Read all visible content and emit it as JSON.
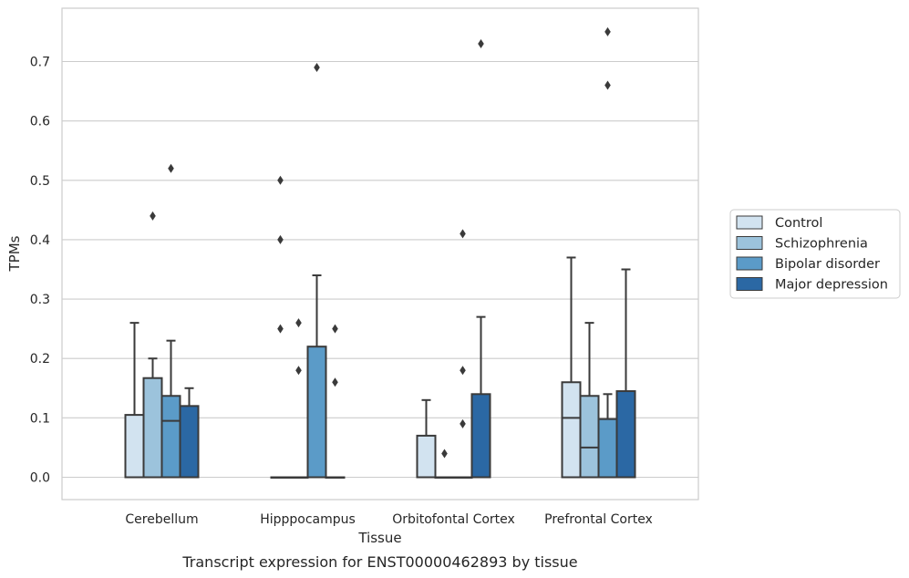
{
  "chart_data": {
    "type": "box",
    "title": "",
    "caption": "Transcript expression for ENST00000462893 by tissue",
    "xlabel": "Tissue",
    "ylabel": "TPMs",
    "ylim": [
      -0.037,
      0.79
    ],
    "yticks": [
      0.0,
      0.1,
      0.2,
      0.3,
      0.4,
      0.5,
      0.6,
      0.7
    ],
    "ytick_labels": [
      "0.0",
      "0.1",
      "0.2",
      "0.3",
      "0.4",
      "0.5",
      "0.6",
      "0.7"
    ],
    "grid": "horizontal",
    "legend_position": "right",
    "categories": [
      "Cerebellum",
      "Hipppocampus",
      "Orbitofontal Cortex",
      "Prefrontal Cortex"
    ],
    "series": [
      {
        "name": "Control",
        "color": "#d2e3f0",
        "boxes": [
          {
            "min": 0.0,
            "q1": 0.0,
            "median": 0.0,
            "q3": 0.105,
            "max": 0.26,
            "outliers": []
          },
          {
            "min": 0.0,
            "q1": 0.0,
            "median": 0.0,
            "q3": 0.0,
            "max": 0.0,
            "outliers": [
              0.25,
              0.4,
              0.5
            ]
          },
          {
            "min": 0.0,
            "q1": 0.0,
            "median": 0.0,
            "q3": 0.07,
            "max": 0.13,
            "outliers": []
          },
          {
            "min": 0.0,
            "q1": 0.0,
            "median": 0.1,
            "q3": 0.16,
            "max": 0.37,
            "outliers": []
          }
        ]
      },
      {
        "name": "Schizophrenia",
        "color": "#9cc3dc",
        "boxes": [
          {
            "min": 0.0,
            "q1": 0.0,
            "median": 0.0,
            "q3": 0.167,
            "max": 0.2,
            "outliers": [
              0.44
            ]
          },
          {
            "min": 0.0,
            "q1": 0.0,
            "median": 0.0,
            "q3": 0.0,
            "max": 0.0,
            "outliers": [
              0.18,
              0.26
            ]
          },
          {
            "min": 0.0,
            "q1": 0.0,
            "median": 0.0,
            "q3": 0.0,
            "max": 0.0,
            "outliers": [
              0.04
            ]
          },
          {
            "min": 0.0,
            "q1": 0.0,
            "median": 0.05,
            "q3": 0.137,
            "max": 0.26,
            "outliers": []
          }
        ]
      },
      {
        "name": "Bipolar disorder",
        "color": "#5b9bc8",
        "boxes": [
          {
            "min": 0.0,
            "q1": 0.0,
            "median": 0.095,
            "q3": 0.137,
            "max": 0.23,
            "outliers": [
              0.52
            ]
          },
          {
            "min": 0.0,
            "q1": 0.0,
            "median": 0.0,
            "q3": 0.22,
            "max": 0.34,
            "outliers": [
              0.69
            ]
          },
          {
            "min": 0.0,
            "q1": 0.0,
            "median": 0.0,
            "q3": 0.0,
            "max": 0.0,
            "outliers": [
              0.09,
              0.18,
              0.41
            ]
          },
          {
            "min": 0.0,
            "q1": 0.0,
            "median": 0.0,
            "q3": 0.098,
            "max": 0.14,
            "outliers": [
              0.66,
              0.75
            ]
          }
        ]
      },
      {
        "name": "Major depression",
        "color": "#2b68a4",
        "boxes": [
          {
            "min": 0.0,
            "q1": 0.0,
            "median": 0.0,
            "q3": 0.12,
            "max": 0.15,
            "outliers": []
          },
          {
            "min": 0.0,
            "q1": 0.0,
            "median": 0.0,
            "q3": 0.0,
            "max": 0.0,
            "outliers": [
              0.16,
              0.25
            ]
          },
          {
            "min": 0.0,
            "q1": 0.0,
            "median": 0.0,
            "q3": 0.14,
            "max": 0.27,
            "outliers": [
              0.73
            ]
          },
          {
            "min": 0.0,
            "q1": 0.0,
            "median": 0.0,
            "q3": 0.145,
            "max": 0.35,
            "outliers": []
          }
        ]
      }
    ]
  },
  "colors": {
    "edge": "#3a3a3a",
    "grid": "#cccccc",
    "frame": "#cccccc"
  }
}
